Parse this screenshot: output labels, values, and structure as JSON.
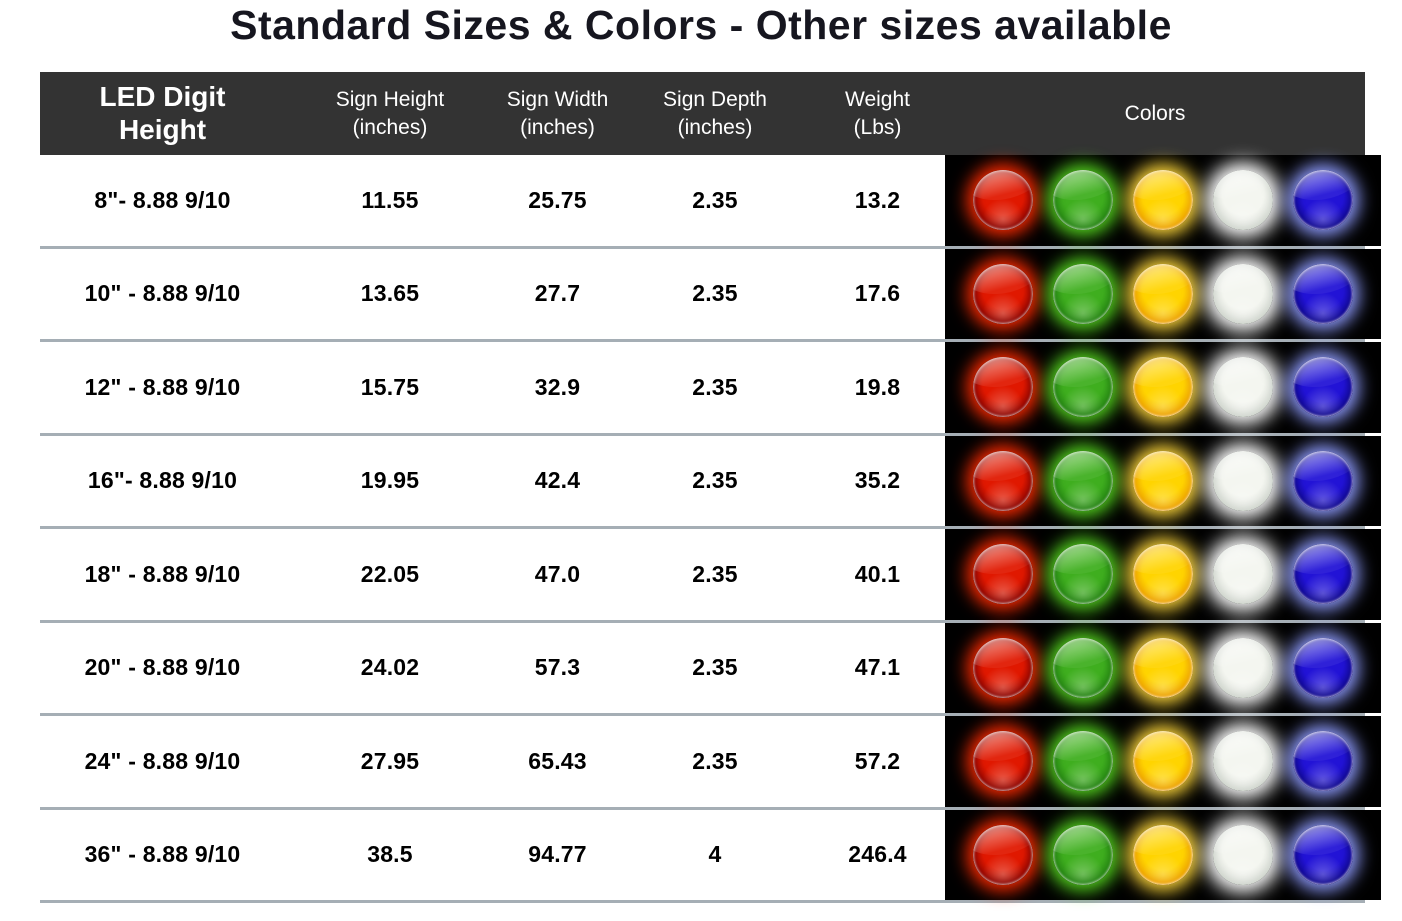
{
  "page": {
    "title": "Standard Sizes & Colors - Other sizes available"
  },
  "table": {
    "headers": [
      {
        "label": "LED Digit Height"
      },
      {
        "label": "Sign Height",
        "sub": "(inches)"
      },
      {
        "label": "Sign Width",
        "sub": "(inches)"
      },
      {
        "label": "Sign Depth",
        "sub": "(inches)"
      },
      {
        "label": "Weight",
        "sub": "(Lbs)"
      },
      {
        "label": "Colors"
      }
    ],
    "rows": [
      {
        "led": "8\"- 8.88 9/10",
        "height": "11.55",
        "width": "25.75",
        "depth": "2.35",
        "weight": "13.2"
      },
      {
        "led": "10\" - 8.88 9/10",
        "height": "13.65",
        "width": "27.7",
        "depth": "2.35",
        "weight": "17.6"
      },
      {
        "led": "12\" - 8.88 9/10",
        "height": "15.75",
        "width": "32.9",
        "depth": "2.35",
        "weight": "19.8"
      },
      {
        "led": "16\"- 8.88 9/10",
        "height": "19.95",
        "width": "42.4",
        "depth": "2.35",
        "weight": "35.2"
      },
      {
        "led": "18\" - 8.88 9/10",
        "height": "22.05",
        "width": "47.0",
        "depth": "2.35",
        "weight": "40.1"
      },
      {
        "led": "20\" - 8.88 9/10",
        "height": "24.02",
        "width": "57.3",
        "depth": "2.35",
        "weight": "47.1"
      },
      {
        "led": "24\" - 8.88 9/10",
        "height": "27.95",
        "width": "65.43",
        "depth": "2.35",
        "weight": "57.2"
      },
      {
        "led": "36\" - 8.88 9/10",
        "height": "38.5",
        "width": "94.77",
        "depth": "4",
        "weight": "246.4"
      }
    ]
  },
  "colors": {
    "header_bg": "#333333",
    "separator": "#a5aeb5",
    "swatch_bg": "#000000",
    "title_text": "#16161f",
    "leds": [
      {
        "name": "red",
        "base": "#e01800",
        "dark": "#7a0000",
        "glow": "#ff2a00",
        "gloss": "#ffe4de"
      },
      {
        "name": "green",
        "base": "#3fae1f",
        "dark": "#1f7a10",
        "glow": "#55d61f",
        "gloss": "#eaffdd"
      },
      {
        "name": "yellow",
        "base": "#ffd400",
        "dark": "#e89600",
        "glow": "#ffd83a",
        "gloss": "#fffbd8"
      },
      {
        "name": "white",
        "base": "#f4f6f0",
        "dark": "#c9cec7",
        "glow": "#ffffff",
        "gloss": "#ffffff"
      },
      {
        "name": "blue",
        "base": "#2213d6",
        "dark": "#0c067e",
        "glow": "#8f9cff",
        "gloss": "#eef2ff"
      }
    ]
  }
}
